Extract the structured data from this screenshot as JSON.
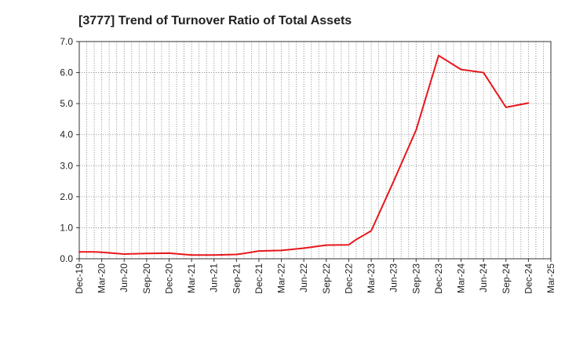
{
  "chart_data": {
    "type": "line",
    "title": "[3777]  Trend of Turnover Ratio of Total Assets",
    "xlabel": "",
    "ylabel": "",
    "ylim": [
      0,
      7
    ],
    "yticks": [
      "0.0",
      "1.0",
      "2.0",
      "3.0",
      "4.0",
      "5.0",
      "6.0",
      "7.0"
    ],
    "x_tick_labels": [
      "Dec-19",
      "Mar-20",
      "Jun-20",
      "Sep-20",
      "Dec-20",
      "Mar-21",
      "Jun-21",
      "Sep-21",
      "Dec-21",
      "Mar-22",
      "Jun-22",
      "Sep-22",
      "Dec-22",
      "Mar-23",
      "Jun-23",
      "Sep-23",
      "Dec-23",
      "Mar-24",
      "Jun-24",
      "Sep-24",
      "Dec-24",
      "Mar-25"
    ],
    "grid": true,
    "line_color": "#e8161b",
    "series": [
      {
        "points": [
          [
            "Dec-19",
            0.22
          ],
          [
            "Jan-20",
            0.22
          ],
          [
            "Feb-20",
            0.22
          ],
          [
            "Mar-20",
            0.21
          ],
          [
            "Apr-20",
            0.19
          ],
          [
            "May-20",
            0.17
          ],
          [
            "Jun-20",
            0.15
          ],
          [
            "Sep-20",
            0.17
          ],
          [
            "Dec-20",
            0.18
          ],
          [
            "Mar-21",
            0.12
          ],
          [
            "Jun-21",
            0.12
          ],
          [
            "Sep-21",
            0.14
          ],
          [
            "Oct-21",
            0.17
          ],
          [
            "Nov-21",
            0.21
          ],
          [
            "Dec-21",
            0.25
          ],
          [
            "Mar-22",
            0.27
          ],
          [
            "Jun-22",
            0.34
          ],
          [
            "Sep-22",
            0.44
          ],
          [
            "Dec-22",
            0.45
          ],
          [
            "Jan-23",
            0.62
          ],
          [
            "Feb-23",
            0.76
          ],
          [
            "Mar-23",
            0.9
          ],
          [
            "Jun-23",
            2.5
          ],
          [
            "Sep-23",
            4.15
          ],
          [
            "Dec-23",
            6.55
          ],
          [
            "Mar-24",
            6.1
          ],
          [
            "Jun-24",
            6.0
          ],
          [
            "Sep-24",
            4.88
          ],
          [
            "Dec-24",
            5.02
          ]
        ]
      }
    ]
  }
}
